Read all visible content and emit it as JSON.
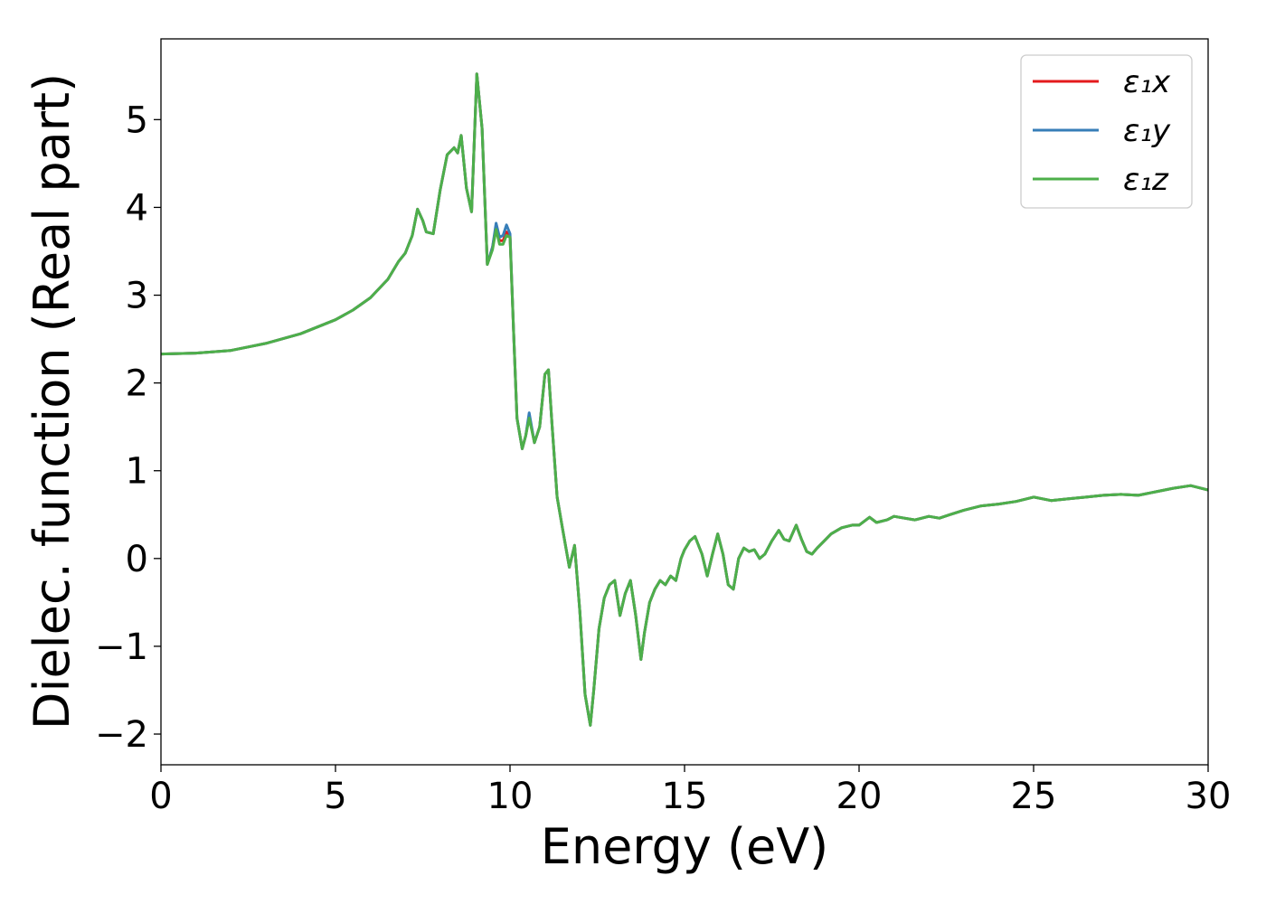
{
  "chart_data": {
    "type": "line",
    "title": "",
    "xlabel": "Energy (eV)",
    "ylabel": "Dielec. function (Real part)",
    "xlim": [
      0,
      30
    ],
    "ylim": [
      -2.35,
      5.92
    ],
    "xticks": [
      0,
      5,
      10,
      15,
      20,
      25,
      30
    ],
    "yticks": [
      -2,
      -1,
      0,
      1,
      2,
      3,
      4,
      5
    ],
    "grid": false,
    "legend_position": "top-right",
    "series": [
      {
        "name": "ε₁x",
        "color": "#e41a1c",
        "x": [
          0,
          1,
          2,
          3,
          4,
          5,
          5.5,
          6,
          6.5,
          6.8,
          7,
          7.2,
          7.35,
          7.5,
          7.6,
          7.8,
          8,
          8.2,
          8.4,
          8.5,
          8.6,
          8.75,
          8.9,
          9.05,
          9.2,
          9.35,
          9.5,
          9.6,
          9.7,
          9.8,
          9.9,
          10,
          10.1,
          10.2,
          10.35,
          10.45,
          10.55,
          10.7,
          10.85,
          11,
          11.1,
          11.2,
          11.35,
          11.5,
          11.7,
          11.85,
          12,
          12.15,
          12.3,
          12.4,
          12.55,
          12.7,
          12.85,
          13,
          13.15,
          13.3,
          13.45,
          13.6,
          13.75,
          13.85,
          14,
          14.15,
          14.3,
          14.45,
          14.6,
          14.75,
          14.9,
          15,
          15.15,
          15.3,
          15.5,
          15.65,
          15.8,
          15.95,
          16.1,
          16.25,
          16.4,
          16.55,
          16.7,
          16.85,
          17,
          17.15,
          17.3,
          17.5,
          17.7,
          17.85,
          18,
          18.2,
          18.35,
          18.5,
          18.65,
          18.8,
          19,
          19.2,
          19.5,
          19.8,
          20,
          20.3,
          20.5,
          20.8,
          21,
          21.3,
          21.6,
          22,
          22.3,
          22.6,
          23,
          23.5,
          24,
          24.5,
          25,
          25.5,
          26,
          26.5,
          27,
          27.5,
          28,
          28.5,
          29,
          29.5,
          30
        ],
        "y": [
          2.33,
          2.34,
          2.37,
          2.45,
          2.56,
          2.72,
          2.83,
          2.97,
          3.18,
          3.38,
          3.48,
          3.68,
          3.98,
          3.85,
          3.72,
          3.7,
          4.2,
          4.6,
          4.68,
          4.62,
          4.82,
          4.22,
          3.95,
          5.52,
          4.9,
          3.35,
          3.55,
          3.78,
          3.62,
          3.62,
          3.72,
          3.68,
          2.6,
          1.6,
          1.25,
          1.4,
          1.63,
          1.32,
          1.5,
          2.1,
          2.15,
          1.55,
          0.7,
          0.35,
          -0.1,
          0.15,
          -0.6,
          -1.55,
          -1.9,
          -1.5,
          -0.8,
          -0.45,
          -0.3,
          -0.25,
          -0.65,
          -0.4,
          -0.25,
          -0.65,
          -1.15,
          -0.85,
          -0.5,
          -0.35,
          -0.25,
          -0.3,
          -0.2,
          -0.25,
          0.0,
          0.1,
          0.2,
          0.25,
          0.05,
          -0.2,
          0.05,
          0.28,
          0.05,
          -0.3,
          -0.35,
          0.0,
          0.12,
          0.08,
          0.1,
          0.0,
          0.05,
          0.2,
          0.32,
          0.22,
          0.2,
          0.38,
          0.22,
          0.08,
          0.05,
          0.12,
          0.2,
          0.28,
          0.35,
          0.38,
          0.38,
          0.47,
          0.41,
          0.44,
          0.48,
          0.46,
          0.44,
          0.48,
          0.46,
          0.5,
          0.55,
          0.6,
          0.62,
          0.65,
          0.7,
          0.66,
          0.68,
          0.7,
          0.72,
          0.73,
          0.72,
          0.76,
          0.8,
          0.83,
          0.78
        ]
      },
      {
        "name": "ε₁y",
        "color": "#377eb8",
        "x": [
          0,
          1,
          2,
          3,
          4,
          5,
          5.5,
          6,
          6.5,
          6.8,
          7,
          7.2,
          7.35,
          7.5,
          7.6,
          7.8,
          8,
          8.2,
          8.4,
          8.5,
          8.6,
          8.75,
          8.9,
          9.05,
          9.2,
          9.35,
          9.5,
          9.6,
          9.7,
          9.8,
          9.9,
          10,
          10.1,
          10.2,
          10.35,
          10.45,
          10.55,
          10.7,
          10.85,
          11,
          11.1,
          11.2,
          11.35,
          11.5,
          11.7,
          11.85,
          12,
          12.15,
          12.3,
          12.4,
          12.55,
          12.7,
          12.85,
          13,
          13.15,
          13.3,
          13.45,
          13.6,
          13.75,
          13.85,
          14,
          14.15,
          14.3,
          14.45,
          14.6,
          14.75,
          14.9,
          15,
          15.15,
          15.3,
          15.5,
          15.65,
          15.8,
          15.95,
          16.1,
          16.25,
          16.4,
          16.55,
          16.7,
          16.85,
          17,
          17.15,
          17.3,
          17.5,
          17.7,
          17.85,
          18,
          18.2,
          18.35,
          18.5,
          18.65,
          18.8,
          19,
          19.2,
          19.5,
          19.8,
          20,
          20.3,
          20.5,
          20.8,
          21,
          21.3,
          21.6,
          22,
          22.3,
          22.6,
          23,
          23.5,
          24,
          24.5,
          25,
          25.5,
          26,
          26.5,
          27,
          27.5,
          28,
          28.5,
          29,
          29.5,
          30
        ],
        "y": [
          2.33,
          2.34,
          2.37,
          2.45,
          2.56,
          2.72,
          2.83,
          2.97,
          3.18,
          3.38,
          3.48,
          3.68,
          3.98,
          3.85,
          3.72,
          3.7,
          4.2,
          4.6,
          4.68,
          4.62,
          4.82,
          4.22,
          3.95,
          5.52,
          4.9,
          3.35,
          3.55,
          3.82,
          3.66,
          3.68,
          3.8,
          3.7,
          2.6,
          1.6,
          1.25,
          1.4,
          1.66,
          1.32,
          1.5,
          2.1,
          2.15,
          1.55,
          0.7,
          0.35,
          -0.1,
          0.15,
          -0.6,
          -1.55,
          -1.9,
          -1.5,
          -0.8,
          -0.45,
          -0.3,
          -0.25,
          -0.65,
          -0.4,
          -0.25,
          -0.65,
          -1.15,
          -0.85,
          -0.5,
          -0.35,
          -0.25,
          -0.3,
          -0.2,
          -0.25,
          0.0,
          0.1,
          0.2,
          0.25,
          0.05,
          -0.2,
          0.05,
          0.28,
          0.05,
          -0.3,
          -0.35,
          0.0,
          0.12,
          0.08,
          0.1,
          0.0,
          0.05,
          0.2,
          0.32,
          0.22,
          0.2,
          0.38,
          0.22,
          0.08,
          0.05,
          0.12,
          0.2,
          0.28,
          0.35,
          0.38,
          0.38,
          0.47,
          0.41,
          0.44,
          0.48,
          0.46,
          0.44,
          0.48,
          0.46,
          0.5,
          0.55,
          0.6,
          0.62,
          0.65,
          0.7,
          0.66,
          0.68,
          0.7,
          0.72,
          0.73,
          0.72,
          0.76,
          0.8,
          0.83,
          0.78
        ]
      },
      {
        "name": "ε₁z",
        "color": "#4daf4a",
        "x": [
          0,
          1,
          2,
          3,
          4,
          5,
          5.5,
          6,
          6.5,
          6.8,
          7,
          7.2,
          7.35,
          7.5,
          7.6,
          7.8,
          8,
          8.2,
          8.4,
          8.5,
          8.6,
          8.75,
          8.9,
          9.05,
          9.2,
          9.35,
          9.5,
          9.6,
          9.7,
          9.8,
          9.9,
          10,
          10.1,
          10.2,
          10.35,
          10.45,
          10.55,
          10.7,
          10.85,
          11,
          11.1,
          11.2,
          11.35,
          11.5,
          11.7,
          11.85,
          12,
          12.15,
          12.3,
          12.4,
          12.55,
          12.7,
          12.85,
          13,
          13.15,
          13.3,
          13.45,
          13.6,
          13.75,
          13.85,
          14,
          14.15,
          14.3,
          14.45,
          14.6,
          14.75,
          14.9,
          15,
          15.15,
          15.3,
          15.5,
          15.65,
          15.8,
          15.95,
          16.1,
          16.25,
          16.4,
          16.55,
          16.7,
          16.85,
          17,
          17.15,
          17.3,
          17.5,
          17.7,
          17.85,
          18,
          18.2,
          18.35,
          18.5,
          18.65,
          18.8,
          19,
          19.2,
          19.5,
          19.8,
          20,
          20.3,
          20.5,
          20.8,
          21,
          21.3,
          21.6,
          22,
          22.3,
          22.6,
          23,
          23.5,
          24,
          24.5,
          25,
          25.5,
          26,
          26.5,
          27,
          27.5,
          28,
          28.5,
          29,
          29.5,
          30
        ],
        "y": [
          2.33,
          2.34,
          2.37,
          2.45,
          2.56,
          2.72,
          2.83,
          2.97,
          3.18,
          3.38,
          3.48,
          3.68,
          3.98,
          3.85,
          3.72,
          3.7,
          4.2,
          4.6,
          4.68,
          4.62,
          4.82,
          4.22,
          3.95,
          5.52,
          4.9,
          3.35,
          3.52,
          3.75,
          3.58,
          3.58,
          3.68,
          3.66,
          2.6,
          1.6,
          1.25,
          1.4,
          1.6,
          1.32,
          1.5,
          2.1,
          2.15,
          1.55,
          0.7,
          0.35,
          -0.1,
          0.15,
          -0.6,
          -1.55,
          -1.9,
          -1.5,
          -0.8,
          -0.45,
          -0.3,
          -0.25,
          -0.65,
          -0.4,
          -0.25,
          -0.65,
          -1.15,
          -0.85,
          -0.5,
          -0.35,
          -0.25,
          -0.3,
          -0.2,
          -0.25,
          0.0,
          0.1,
          0.2,
          0.25,
          0.05,
          -0.2,
          0.05,
          0.28,
          0.05,
          -0.3,
          -0.35,
          0.0,
          0.12,
          0.08,
          0.1,
          0.0,
          0.05,
          0.2,
          0.32,
          0.22,
          0.2,
          0.38,
          0.22,
          0.08,
          0.05,
          0.12,
          0.2,
          0.28,
          0.35,
          0.38,
          0.38,
          0.47,
          0.41,
          0.44,
          0.48,
          0.46,
          0.44,
          0.48,
          0.46,
          0.5,
          0.55,
          0.6,
          0.62,
          0.65,
          0.7,
          0.66,
          0.68,
          0.7,
          0.72,
          0.73,
          0.72,
          0.76,
          0.8,
          0.83,
          0.78
        ]
      }
    ]
  }
}
